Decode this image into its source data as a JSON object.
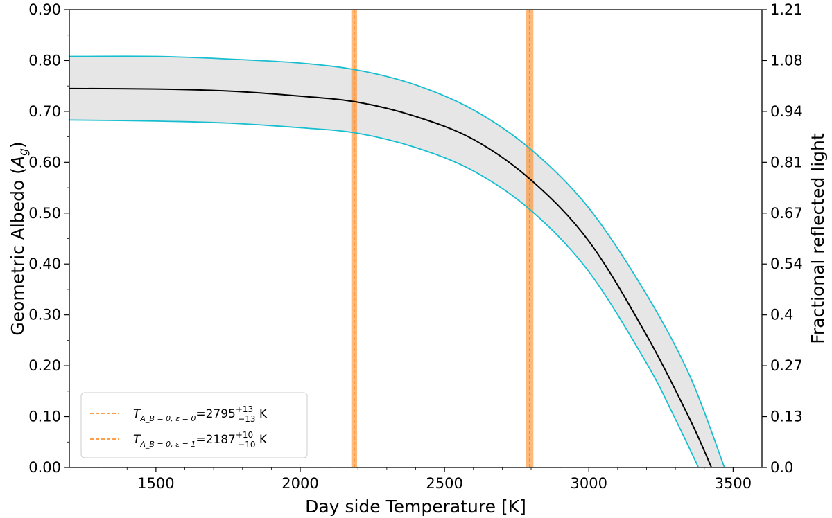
{
  "chart_data": {
    "type": "line",
    "xlabel": "Day side Temperature [K]",
    "ylabel": "Geometric Albedo (A_g)",
    "ylabel_main": "Geometric Albedo (",
    "ylabel_symbol": "A",
    "ylabel_sub": "g",
    "ylabel_close": ")",
    "y2label": "Fractional reflected light",
    "xlim": [
      1200,
      3600
    ],
    "ylim": [
      0.0,
      0.9
    ],
    "x_ticks": [
      "1500",
      "2000",
      "2500",
      "3000",
      "3500"
    ],
    "x_tick_values": [
      1500,
      2000,
      2500,
      3000,
      3500
    ],
    "y_ticks": [
      "0.00",
      "0.10",
      "0.20",
      "0.30",
      "0.40",
      "0.50",
      "0.60",
      "0.70",
      "0.80",
      "0.90"
    ],
    "y_tick_values": [
      0.0,
      0.1,
      0.2,
      0.3,
      0.4,
      0.5,
      0.6,
      0.7,
      0.8,
      0.9
    ],
    "y2_ticks": [
      "0.0",
      "0.13",
      "0.27",
      "0.4",
      "0.54",
      "0.67",
      "0.81",
      "0.94",
      "1.08",
      "1.21"
    ],
    "series": [
      {
        "role": "central",
        "color": "#000000",
        "x": [
          1200,
          1500,
          1750,
          2000,
          2200,
          2400,
          2600,
          2800,
          3000,
          3200,
          3350,
          3425
        ],
        "y": [
          0.745,
          0.744,
          0.74,
          0.73,
          0.718,
          0.69,
          0.645,
          0.565,
          0.445,
          0.26,
          0.095,
          0.0
        ]
      },
      {
        "role": "upper-bound",
        "color": "#17becf",
        "x": [
          1200,
          1500,
          1750,
          2000,
          2200,
          2400,
          2600,
          2800,
          3000,
          3200,
          3350,
          3470
        ],
        "y": [
          0.808,
          0.808,
          0.803,
          0.795,
          0.781,
          0.752,
          0.703,
          0.625,
          0.51,
          0.34,
          0.18,
          0.0
        ]
      },
      {
        "role": "lower-bound",
        "color": "#17becf",
        "x": [
          1200,
          1500,
          1750,
          2000,
          2200,
          2400,
          2600,
          2800,
          3000,
          3200,
          3300,
          3380
        ],
        "y": [
          0.683,
          0.681,
          0.677,
          0.668,
          0.657,
          0.629,
          0.583,
          0.505,
          0.385,
          0.205,
          0.095,
          0.0
        ]
      }
    ],
    "band_color": "#e6e6e6",
    "vlines": [
      {
        "x": 2795,
        "err": 13,
        "color": "#ff7f0e",
        "label_value": "2795",
        "sup": "+13",
        "sub": "−13"
      },
      {
        "x": 2187,
        "err": 10,
        "color": "#ff7f0e",
        "label_value": "2187",
        "sup": "+10",
        "sub": "−10"
      }
    ],
    "legend": {
      "position": "lower-left",
      "entries": [
        {
          "symbol": "T",
          "sub": "A_B = 0, ε = 0",
          "eq": "=",
          "value": "2795",
          "sup": "+13",
          "low": "−13",
          "unit": "K"
        },
        {
          "symbol": "T",
          "sub": "A_B = 0, ε = 1",
          "eq": "=",
          "value": "2187",
          "sup": "+10",
          "low": "−10",
          "unit": "K"
        }
      ]
    },
    "grid": false
  }
}
